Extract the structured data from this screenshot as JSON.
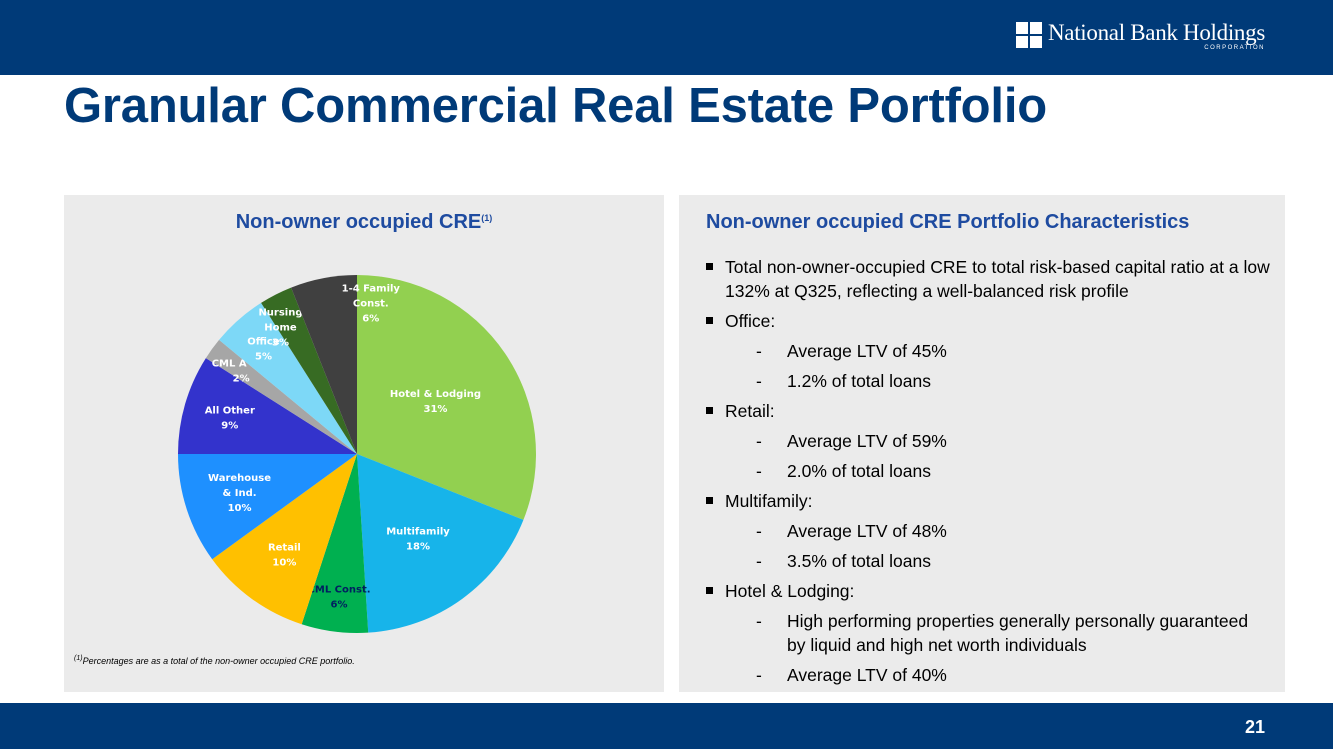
{
  "header": {
    "logo_name": "National Bank Holdings",
    "logo_sub": "CORPORATION"
  },
  "page_title": "Granular Commercial Real Estate Portfolio",
  "left_panel": {
    "title": "Non-owner occupied CRE",
    "title_sup": "(1)",
    "footnote_sup": "(1)",
    "footnote": "Percentages are as a total of the non-owner occupied CRE portfolio."
  },
  "chart_data": {
    "type": "pie",
    "title": "Non-owner occupied CRE",
    "slices": [
      {
        "label": "Hotel & Lodging",
        "value": 31,
        "text": "31%",
        "color": "#92d050",
        "text_color": "#ffffff"
      },
      {
        "label": "Multifamily",
        "value": 18,
        "text": "18%",
        "color": "#17b4ea",
        "text_color": "#ffffff"
      },
      {
        "label": "CML Const.",
        "value": 6,
        "text": "6%",
        "color": "#00b050",
        "text_color": "#002060"
      },
      {
        "label": "Retail",
        "value": 10,
        "text": "10%",
        "color": "#ffc000",
        "text_color": "#ffffff"
      },
      {
        "label": "Warehouse & Ind.",
        "value": 10,
        "text": "10%",
        "color": "#1e90ff",
        "text_color": "#ffffff"
      },
      {
        "label": "All Other",
        "value": 9,
        "text": "9%",
        "color": "#3333cc",
        "text_color": "#ffffff"
      },
      {
        "label": "CML A & D",
        "value": 2,
        "text": "2%",
        "color": "#a6a6a6",
        "text_color": "#ffffff"
      },
      {
        "label": "Office",
        "value": 5,
        "text": "5%",
        "color": "#7dd8f7",
        "text_color": "#ffffff"
      },
      {
        "label": "Nursing Home",
        "value": 3,
        "text": "3%",
        "color": "#376b23",
        "text_color": "#ffffff"
      },
      {
        "label": "1-4 Family Const.",
        "value": 6,
        "text": "6%",
        "color": "#404040",
        "text_color": "#ffffff"
      }
    ]
  },
  "right_panel": {
    "title": "Non-owner occupied CRE Portfolio Characteristics",
    "bullets": [
      {
        "text": "Total non-owner-occupied CRE to total risk-based capital ratio at a low 132% at Q325, reflecting a well-balanced risk profile"
      },
      {
        "text": "Office:"
      },
      {
        "text": "Average LTV of 45%"
      },
      {
        "text": "1.2% of total loans"
      },
      {
        "text": "Retail:"
      },
      {
        "text": "Average LTV of 59%"
      },
      {
        "text": "2.0% of total loans"
      },
      {
        "text": "Multifamily:"
      },
      {
        "text": "Average LTV of 48%"
      },
      {
        "text": "3.5% of total loans"
      },
      {
        "text": "Hotel & Lodging:"
      },
      {
        "text": "High performing properties generally personally guaranteed by liquid and high net worth individuals"
      },
      {
        "text": "Average LTV of 40%"
      }
    ]
  },
  "page_number": "21",
  "colors": {
    "brand_navy": "#003a78",
    "heading_blue": "#1e4ba0",
    "panel_bg": "#ebebeb"
  }
}
